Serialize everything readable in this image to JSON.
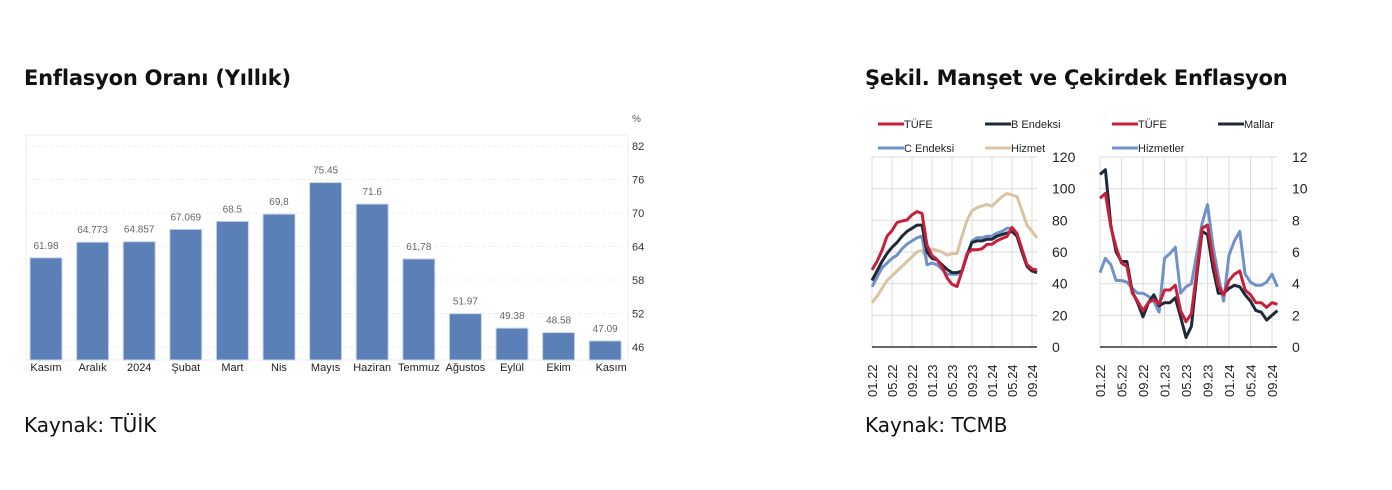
{
  "left_panel": {
    "title": "Enflasyon Oranı (Yıllık)",
    "source": "Kaynak: TÜİK"
  },
  "right_panel": {
    "title": "Şekil. Manşet ve Çekirdek Enflasyon",
    "source": "Kaynak: TCMB"
  },
  "colors": {
    "bar": "#5b80b8",
    "tufe": "#c8203a",
    "dark": "#1f2a38",
    "blue": "#6f93c9",
    "tan": "#d9c4a1"
  },
  "chart_data": [
    {
      "type": "bar",
      "unit_label": "%",
      "categories": [
        "Kasım",
        "Aralık",
        "2024",
        "Şubat",
        "Mart",
        "Nis",
        "Mayıs",
        "Haziran",
        "Temmuz",
        "Ağustos",
        "Eylül",
        "Ekim",
        "Kasım"
      ],
      "values": [
        61.98,
        64.773,
        64.857,
        67.069,
        68.5,
        69.8,
        75.45,
        71.6,
        61.78,
        51.97,
        49.38,
        48.58,
        47.09
      ],
      "value_labels": [
        "61.98",
        "64.773",
        "64.857",
        "67.069",
        "68.5",
        "69,8",
        "75.45",
        "71.6",
        "61,78",
        "51.97",
        "49.38",
        "48.58",
        "47.09"
      ],
      "yticks": [
        "82",
        "76",
        "70",
        "64",
        "58",
        "52",
        "46"
      ],
      "ylim": [
        46,
        82
      ],
      "grid": true
    },
    {
      "type": "line",
      "xticks": [
        "01.22",
        "05.22",
        "09.22",
        "01.23",
        "05.23",
        "09.23",
        "01.24",
        "05.24",
        "09.24"
      ],
      "yticks": [
        "0",
        "20",
        "40",
        "60",
        "80",
        "100",
        "120"
      ],
      "ylim": [
        0,
        120
      ],
      "legend_placement": "top",
      "series": [
        {
          "name": "TÜFE",
          "color": "#c8203a",
          "values": [
            48.7,
            54,
            61,
            70,
            73.5,
            78.6,
            79.6,
            80.2,
            83.5,
            85.5,
            84.4,
            64.3,
            57.7,
            55.2,
            50.5,
            43.7,
            39.6,
            38.2,
            47.8,
            58.9,
            61.5,
            61.4,
            62,
            64.8,
            64.9,
            67.1,
            68.5,
            69.8,
            75.5,
            71.6,
            61.8,
            52,
            49.4,
            48.6
          ]
        },
        {
          "name": "B Endeksi",
          "color": "#1f2a38",
          "values": [
            42,
            48,
            54,
            59,
            63,
            66,
            70,
            73,
            75,
            77,
            77,
            60,
            56,
            55,
            52,
            49,
            47,
            47,
            48,
            58,
            66,
            67,
            67,
            68,
            68,
            70,
            71,
            72,
            73,
            70,
            60,
            51,
            48,
            47
          ]
        },
        {
          "name": "C Endeksi",
          "color": "#6f93c9",
          "values": [
            38,
            44,
            50,
            53,
            56,
            58,
            62,
            65,
            67,
            69,
            70,
            52,
            53,
            52,
            49,
            46,
            46,
            46,
            48,
            58,
            67,
            69,
            69,
            70,
            70,
            72,
            73,
            75,
            75,
            71,
            61,
            51,
            48,
            47
          ]
        },
        {
          "name": "Hizmet",
          "color": "#d9c4a1",
          "values": [
            28,
            32,
            37,
            42,
            45,
            48,
            51,
            54,
            57,
            60,
            61,
            56,
            62,
            61,
            60,
            58,
            59,
            59,
            70,
            80,
            86,
            88,
            89,
            90,
            89,
            92,
            95,
            97,
            96,
            95,
            86,
            77,
            73,
            69
          ]
        }
      ]
    },
    {
      "type": "line",
      "xticks": [
        "01.22",
        "05.22",
        "09.22",
        "01.23",
        "05.23",
        "09.23",
        "01.24",
        "05.24",
        "09.24"
      ],
      "yticks": [
        "0",
        "2",
        "4",
        "6",
        "8",
        "10",
        "12"
      ],
      "ylim": [
        0,
        12
      ],
      "legend_placement": "top",
      "series": [
        {
          "name": "TÜFE",
          "color": "#c8203a",
          "values": [
            9.4,
            9.7,
            7.6,
            6.3,
            5.3,
            5.1,
            3.4,
            2.9,
            2.3,
            2.8,
            3.0,
            2.7,
            3.6,
            3.6,
            3.9,
            2.3,
            1.6,
            2.1,
            4.8,
            7.5,
            7.7,
            5.6,
            3.9,
            3.3,
            4.2,
            4.6,
            4.8,
            3.6,
            3.3,
            2.8,
            2.8,
            2.5,
            2.8,
            2.7
          ]
        },
        {
          "name": "Mallar",
          "color": "#1f2a38",
          "values": [
            10.9,
            11.2,
            7.7,
            6.0,
            5.4,
            5.4,
            3.5,
            2.8,
            1.9,
            2.8,
            3.3,
            2.6,
            2.8,
            2.8,
            3.1,
            1.9,
            0.6,
            1.3,
            4.5,
            7.3,
            7.1,
            5.0,
            3.4,
            3.4,
            3.7,
            3.9,
            3.8,
            3.3,
            2.9,
            2.3,
            2.2,
            1.7,
            2.0,
            2.3
          ]
        },
        {
          "name": "Hizmetler",
          "color": "#6f93c9",
          "values": [
            4.7,
            5.6,
            5.2,
            4.2,
            4.2,
            4.1,
            3.7,
            3.4,
            3.4,
            3.2,
            2.9,
            2.2,
            5.6,
            5.9,
            6.3,
            3.4,
            3.8,
            4.0,
            5.9,
            7.8,
            9.0,
            6.4,
            4.5,
            2.9,
            5.8,
            6.7,
            7.3,
            4.6,
            4.1,
            3.9,
            3.9,
            4.1,
            4.6,
            3.8
          ]
        }
      ]
    }
  ]
}
